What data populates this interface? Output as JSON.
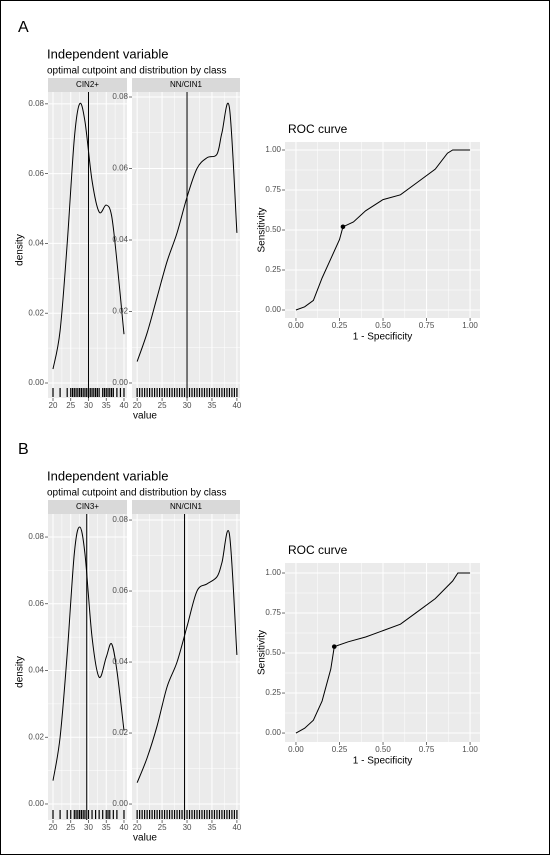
{
  "chart_data": [
    {
      "type": "density-facets",
      "panel": "A",
      "title": "Independent variable",
      "subtitle": "optimal cutpoint and distribution by class",
      "xlabel": "value",
      "ylabel": "density",
      "facets": [
        {
          "name": "CIN2+",
          "x": [
            20,
            22,
            24,
            26,
            27.5,
            29,
            31,
            33,
            35,
            36.5,
            38,
            40
          ],
          "values": [
            0.004,
            0.015,
            0.04,
            0.07,
            0.08,
            0.075,
            0.058,
            0.049,
            0.051,
            0.048,
            0.035,
            0.014
          ],
          "cutpoint": 30,
          "rug": [
            20,
            22,
            24,
            25,
            25.5,
            26,
            26.5,
            27,
            27.5,
            28,
            28.5,
            29,
            29.5,
            30,
            30.5,
            31,
            31.5,
            32,
            32.5,
            33,
            34,
            34.5,
            35,
            35.5,
            36,
            36.5,
            37,
            38,
            39,
            40
          ],
          "xlim": [
            18.59,
            40.85
          ],
          "ylim": [
            -0.0043,
            0.0834
          ],
          "xticks": [
            20,
            25,
            30,
            35,
            40
          ],
          "yticks": [
            {
              "value": 0,
              "label": "0.00"
            },
            {
              "value": 0.02,
              "label": "0.02"
            },
            {
              "value": 0.04,
              "label": "0.04"
            },
            {
              "value": 0.06,
              "label": "0.06"
            },
            {
              "value": 0.08,
              "label": "0.08"
            }
          ]
        },
        {
          "name": "NN/CIN1",
          "x": [
            20,
            22,
            24,
            26,
            28,
            30,
            32,
            34,
            36,
            37,
            38.5,
            40
          ],
          "values": [
            0.006,
            0.014,
            0.024,
            0.034,
            0.042,
            0.052,
            0.06,
            0.063,
            0.064,
            0.07,
            0.077,
            0.042
          ],
          "cutpoint": 30,
          "rug": [
            20,
            20.5,
            21,
            21.5,
            22,
            22.5,
            23,
            23.5,
            24,
            24.5,
            25,
            25.5,
            26,
            26.5,
            27,
            27.5,
            28,
            28.5,
            29,
            29.5,
            30,
            30.5,
            31,
            31.5,
            32,
            32.5,
            33,
            33.5,
            34,
            34.5,
            35,
            35.5,
            36,
            36.5,
            37,
            37.5,
            38,
            38.5,
            39,
            39.5,
            40
          ],
          "xlim": [
            18.97,
            40.62
          ],
          "ylim": [
            -0.0042,
            0.0814
          ],
          "xticks": [
            20,
            25,
            30,
            35,
            40
          ],
          "yticks": [
            {
              "value": 0,
              "label": "0.00"
            },
            {
              "value": 0.02,
              "label": "0.02"
            },
            {
              "value": 0.04,
              "label": "0.04"
            },
            {
              "value": 0.06,
              "label": "0.06"
            },
            {
              "value": 0.08,
              "label": "0.08"
            }
          ]
        }
      ]
    },
    {
      "type": "roc",
      "title": "ROC curve",
      "xlabel": "1 - Specificity",
      "ylabel": "Sensitivity",
      "x": [
        0,
        0.05,
        0.1,
        0.15,
        0.2,
        0.25,
        0.27,
        0.33,
        0.4,
        0.5,
        0.6,
        0.7,
        0.8,
        0.87,
        0.9,
        1
      ],
      "values": [
        0,
        0.02,
        0.06,
        0.2,
        0.32,
        0.44,
        0.52,
        0.55,
        0.62,
        0.69,
        0.72,
        0.8,
        0.88,
        0.98,
        1,
        1
      ],
      "cutpoint": {
        "x": 0.27,
        "y": 0.52
      },
      "xlim": [
        -0.063,
        1.057
      ],
      "ylim": [
        -0.05,
        1.05
      ],
      "xticks": [
        {
          "value": 0,
          "label": "0.00"
        },
        {
          "value": 0.25,
          "label": "0.25"
        },
        {
          "value": 0.5,
          "label": "0.50"
        },
        {
          "value": 0.75,
          "label": "0.75"
        },
        {
          "value": 1,
          "label": "1.00"
        }
      ],
      "yticks": [
        {
          "value": 0,
          "label": "0.00"
        },
        {
          "value": 0.25,
          "label": "0.25"
        },
        {
          "value": 0.5,
          "label": "0.50"
        },
        {
          "value": 0.75,
          "label": "0.75"
        },
        {
          "value": 1,
          "label": "1.00"
        }
      ]
    },
    {
      "type": "density-facets",
      "panel": "B",
      "title": "Independent variable",
      "subtitle": "optimal cutpoint and distribution by class",
      "xlabel": "value",
      "ylabel": "density",
      "facets": [
        {
          "name": "CIN3+",
          "x": [
            20,
            22,
            24,
            26,
            27.5,
            29,
            31,
            33,
            35,
            36.5,
            38,
            40
          ],
          "values": [
            0.007,
            0.02,
            0.045,
            0.075,
            0.083,
            0.075,
            0.05,
            0.038,
            0.044,
            0.048,
            0.04,
            0.022
          ],
          "cutpoint": 29.5,
          "rug": [
            20,
            22,
            24,
            25,
            26,
            26.5,
            27,
            27.5,
            28,
            28.5,
            29,
            30,
            31,
            32,
            33,
            34,
            35,
            35.5,
            36,
            37,
            38,
            40
          ],
          "xlim": [
            18.59,
            40.85
          ],
          "ylim": [
            -0.0048,
            0.0869
          ],
          "xticks": [
            20,
            25,
            30,
            35,
            40
          ],
          "yticks": [
            {
              "value": 0,
              "label": "0.00"
            },
            {
              "value": 0.02,
              "label": "0.02"
            },
            {
              "value": 0.04,
              "label": "0.04"
            },
            {
              "value": 0.06,
              "label": "0.06"
            },
            {
              "value": 0.08,
              "label": "0.08"
            }
          ]
        },
        {
          "name": "NN/CIN1",
          "x": [
            20,
            22,
            24,
            26,
            28,
            30,
            32,
            34,
            36,
            37,
            38.5,
            40
          ],
          "values": [
            0.006,
            0.013,
            0.022,
            0.033,
            0.04,
            0.05,
            0.06,
            0.062,
            0.064,
            0.068,
            0.076,
            0.042
          ],
          "cutpoint": 29.5,
          "rug": [
            20,
            20.5,
            21,
            21.5,
            22,
            22.5,
            23,
            23.5,
            24,
            24.5,
            25,
            25.5,
            26,
            26.5,
            27,
            27.5,
            28,
            28.5,
            29,
            29.5,
            30,
            30.5,
            31,
            31.5,
            32,
            32.5,
            33,
            33.5,
            34,
            34.5,
            35,
            35.5,
            36,
            36.5,
            37,
            37.5,
            38,
            38.5,
            39,
            39.5,
            40
          ],
          "xlim": [
            18.97,
            40.62
          ],
          "ylim": [
            -0.0045,
            0.0817
          ],
          "xticks": [
            20,
            25,
            30,
            35,
            40
          ],
          "yticks": [
            {
              "value": 0,
              "label": "0.00"
            },
            {
              "value": 0.02,
              "label": "0.02"
            },
            {
              "value": 0.04,
              "label": "0.04"
            },
            {
              "value": 0.06,
              "label": "0.06"
            },
            {
              "value": 0.08,
              "label": "0.08"
            }
          ]
        }
      ]
    },
    {
      "type": "roc",
      "title": "ROC curve",
      "xlabel": "1 - Specificity",
      "ylabel": "Sensitivity",
      "x": [
        0,
        0.05,
        0.1,
        0.15,
        0.2,
        0.22,
        0.3,
        0.4,
        0.5,
        0.6,
        0.7,
        0.8,
        0.9,
        0.93,
        1
      ],
      "values": [
        0,
        0.03,
        0.08,
        0.2,
        0.4,
        0.54,
        0.57,
        0.6,
        0.64,
        0.68,
        0.76,
        0.84,
        0.95,
        1,
        1
      ],
      "cutpoint": {
        "x": 0.22,
        "y": 0.54
      },
      "xlim": [
        -0.063,
        1.057
      ],
      "ylim": [
        -0.056,
        1.0625
      ],
      "xticks": [
        {
          "value": 0,
          "label": "0.00"
        },
        {
          "value": 0.25,
          "label": "0.25"
        },
        {
          "value": 0.5,
          "label": "0.50"
        },
        {
          "value": 0.75,
          "label": "0.75"
        },
        {
          "value": 1,
          "label": "1.00"
        }
      ],
      "yticks": [
        {
          "value": 0,
          "label": "0.00"
        },
        {
          "value": 0.25,
          "label": "0.25"
        },
        {
          "value": 0.5,
          "label": "0.50"
        },
        {
          "value": 0.75,
          "label": "0.75"
        },
        {
          "value": 1,
          "label": "1.00"
        }
      ]
    }
  ]
}
